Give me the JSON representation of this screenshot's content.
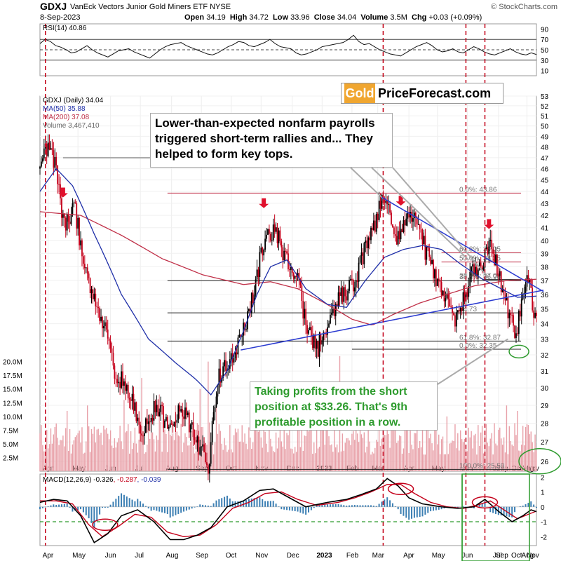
{
  "header": {
    "symbol": "GDXJ",
    "name": "VanEck Vectors Junior Gold Miners ETF  NYSE",
    "date": "8-Sep-2023",
    "open_label": "Open",
    "open": "34.19",
    "high_label": "High",
    "high": "34.72",
    "low_label": "Low",
    "low": "33.96",
    "close_label": "Close",
    "close": "34.04",
    "volume_label": "Volume",
    "volume": "3.5M",
    "chg_label": "Chg",
    "chg": "+0.03 (+0.09%)",
    "source": "© StockCharts.com"
  },
  "logo": {
    "gold": "Gold",
    "rest": "PriceForecast.com"
  },
  "notes": {
    "top": "Lower-than-expected nonfarm payrolls triggered short-term rallies and... They helped to form key tops.",
    "bottom": "Taking profits from the short position at $33.26. That's 9th profitable position in a row."
  },
  "colors": {
    "up": "#000000",
    "down": "#c4001a",
    "ma50": "#1f2fa8",
    "ma200": "#c03048",
    "green": "#2e9b2e",
    "trend": "#2a3ad0",
    "volume": "#e8a0a8"
  },
  "chart_data": [
    {
      "type": "line",
      "title": "RSI(14) 40.86",
      "series": [
        {
          "name": "RSI(14)",
          "last": 40.86,
          "values": [
            62,
            70,
            66,
            58,
            55,
            50,
            44,
            46,
            52,
            58,
            50,
            44,
            40,
            36,
            42,
            48,
            50,
            52,
            46,
            42,
            38,
            34,
            42,
            50,
            56,
            60,
            62,
            64,
            58,
            54,
            50,
            46,
            42,
            40,
            44,
            50,
            56,
            60,
            66,
            64,
            58,
            56,
            60,
            64,
            70,
            62,
            56,
            54,
            52,
            44,
            40,
            42,
            46,
            50,
            56,
            58,
            60,
            62,
            64,
            70,
            78,
            66,
            60,
            62,
            56,
            50,
            46,
            42,
            40,
            38,
            44,
            50,
            56,
            60,
            64,
            58,
            50,
            46,
            48,
            52,
            46,
            44,
            50,
            56,
            52,
            46,
            42,
            40,
            44,
            48,
            52,
            46,
            42,
            40,
            44,
            40.86
          ]
        }
      ],
      "ylim": [
        0,
        100
      ],
      "yticks": [
        90,
        70,
        50,
        30,
        10
      ],
      "guides": [
        70,
        50,
        30
      ]
    },
    {
      "type": "candlestick",
      "title": "GDXJ (Daily) 34.04",
      "legend": [
        {
          "label": "GDXJ (Daily) 34.04",
          "color": "#000000"
        },
        {
          "label": "MA(50) 35.88",
          "color": "#1f2fa8"
        },
        {
          "label": "MA(200) 37.08",
          "color": "#c03048"
        },
        {
          "label": "Volume 3,467,410",
          "color": "#888888"
        }
      ],
      "yscale": "log",
      "ylim": [
        25.5,
        53
      ],
      "yticks": [
        53,
        52,
        51,
        50,
        49,
        48,
        47,
        46,
        45,
        44,
        43,
        42,
        41,
        40,
        39,
        38,
        37,
        36,
        35,
        34,
        33,
        32,
        31,
        30,
        29,
        28,
        27,
        26
      ],
      "price_anchors": [
        [
          0,
          46
        ],
        [
          5,
          48
        ],
        [
          10,
          47
        ],
        [
          18,
          41
        ],
        [
          22,
          42
        ],
        [
          26,
          42.5
        ],
        [
          32,
          38
        ],
        [
          40,
          36
        ],
        [
          48,
          33.5
        ],
        [
          55,
          31
        ],
        [
          64,
          30
        ],
        [
          75,
          27.5
        ],
        [
          86,
          29
        ],
        [
          96,
          27.5
        ],
        [
          104,
          29
        ],
        [
          114,
          27.3
        ],
        [
          124,
          25.8
        ],
        [
          132,
          30.6
        ],
        [
          144,
          32
        ],
        [
          155,
          35
        ],
        [
          164,
          39.3
        ],
        [
          172,
          41
        ],
        [
          180,
          39
        ],
        [
          190,
          37
        ],
        [
          196,
          34
        ],
        [
          204,
          32.3
        ],
        [
          212,
          34
        ],
        [
          222,
          36
        ],
        [
          230,
          36.5
        ],
        [
          238,
          38.8
        ],
        [
          244,
          40.2
        ],
        [
          252,
          43.5
        ],
        [
          258,
          42.5
        ],
        [
          264,
          40
        ],
        [
          272,
          42.3
        ],
        [
          280,
          40.6
        ],
        [
          288,
          38
        ],
        [
          296,
          36
        ],
        [
          306,
          34.5
        ],
        [
          312,
          35.5
        ],
        [
          318,
          37.5
        ],
        [
          326,
          38.3
        ],
        [
          332,
          39.6
        ],
        [
          338,
          37.5
        ],
        [
          344,
          35.2
        ],
        [
          350,
          33.3
        ],
        [
          354,
          34.7
        ],
        [
          358,
          36.8
        ],
        [
          361,
          36.6
        ],
        [
          364,
          34.3
        ],
        [
          366,
          34.04
        ]
      ],
      "ma50": {
        "name": "MA(50)",
        "last": 35.88,
        "anchors": [
          [
            0,
            44
          ],
          [
            12,
            46
          ],
          [
            24,
            44.5
          ],
          [
            40,
            40.5
          ],
          [
            60,
            36
          ],
          [
            80,
            33
          ],
          [
            100,
            31.5
          ],
          [
            115,
            30.5
          ],
          [
            126,
            29.6
          ],
          [
            138,
            31
          ],
          [
            150,
            33.5
          ],
          [
            160,
            36
          ],
          [
            170,
            38
          ],
          [
            182,
            38.5
          ],
          [
            196,
            36.4
          ],
          [
            212,
            35.3
          ],
          [
            226,
            35.1
          ],
          [
            240,
            37
          ],
          [
            254,
            38.7
          ],
          [
            268,
            39.3
          ],
          [
            282,
            39.6
          ],
          [
            296,
            39.3
          ],
          [
            310,
            38.2
          ],
          [
            326,
            37.1
          ],
          [
            340,
            36.4
          ],
          [
            352,
            35.8
          ],
          [
            366,
            35.88
          ]
        ]
      },
      "ma200": {
        "name": "MA(200)",
        "last": 37.08,
        "anchors": [
          [
            0,
            42.3
          ],
          [
            30,
            42.0
          ],
          [
            60,
            40.4
          ],
          [
            90,
            38.6
          ],
          [
            120,
            37.4
          ],
          [
            150,
            36.7
          ],
          [
            170,
            36.9
          ],
          [
            190,
            36.4
          ],
          [
            210,
            35.4
          ],
          [
            230,
            34.3
          ],
          [
            245,
            33.9
          ],
          [
            260,
            34.6
          ],
          [
            280,
            35.4
          ],
          [
            300,
            36.0
          ],
          [
            320,
            36.6
          ],
          [
            345,
            37.0
          ],
          [
            366,
            37.08
          ]
        ]
      },
      "fib_levels": [
        {
          "label": "0.0%: 43.86",
          "price": 43.86,
          "x_from": 94
        },
        {
          "label": "61.8%: 39.05",
          "price": 39.05,
          "x_from": 296
        },
        {
          "label": "50.0%: 38.35",
          "price": 38.35,
          "x_from": 296
        },
        {
          "label": "38.2%: 36.98",
          "price": 36.98,
          "x_from": 94
        },
        {
          "label": "23.6%: 37.06",
          "price": 37.06,
          "x_from": 326
        },
        {
          "label": "34.73",
          "price": 34.73,
          "x_from": 94
        },
        {
          "label": "0.0%: 32.35",
          "price": 32.35,
          "x_from": 230
        },
        {
          "label": "61.8%: 32.87",
          "price": 32.87,
          "x_from": 94
        },
        {
          "label": "100.0%: 25.59",
          "price": 25.59,
          "x_from": 94
        }
      ],
      "resistance_line": [
        [
          252,
          43.5
        ],
        [
          366,
          36.2
        ]
      ],
      "support_line": [
        [
          148,
          32.3
        ],
        [
          366,
          36.3
        ]
      ],
      "top_arrows": [
        {
          "x": 17,
          "price": 43.5
        },
        {
          "x": 165,
          "price": 42.6
        },
        {
          "x": 266,
          "price": 42.8
        },
        {
          "x": 331,
          "price": 40.9
        }
      ],
      "nfp_date_lines": [
        4,
        253,
        314,
        328
      ],
      "volume": {
        "name": "Volume",
        "last": 3467410,
        "yticks": [
          "20.0M",
          "17.5M",
          "15.0M",
          "12.5M",
          "10.0M",
          "7.5M",
          "5.0M",
          "2.5M"
        ],
        "ylim_millions": [
          0,
          22
        ],
        "spikes": [
          [
            20,
            11
          ],
          [
            35,
            12
          ],
          [
            62,
            13
          ],
          [
            75,
            17
          ],
          [
            88,
            14
          ],
          [
            100,
            12
          ],
          [
            118,
            15
          ],
          [
            124,
            20
          ],
          [
            130,
            13
          ],
          [
            160,
            12
          ],
          [
            190,
            10
          ],
          [
            221,
            21
          ],
          [
            250,
            14
          ],
          [
            262,
            12
          ],
          [
            300,
            10
          ],
          [
            344,
            12
          ],
          [
            352,
            11
          ]
        ]
      }
    },
    {
      "type": "line",
      "title": "MACD(12,26,9) -0.326, -0.287, -0.039",
      "legend_parts": [
        "MACD(12,26,9) -0.326",
        ", -0.287",
        ", -0.039"
      ],
      "series": [
        {
          "name": "MACD",
          "last": -0.326,
          "anchors": [
            [
              0,
              0.3
            ],
            [
              10,
              0.5
            ],
            [
              20,
              0.4
            ],
            [
              30,
              -0.6
            ],
            [
              40,
              -2.4
            ],
            [
              50,
              -1.8
            ],
            [
              60,
              -0.6
            ],
            [
              72,
              -0.2
            ],
            [
              84,
              -1.0
            ],
            [
              96,
              -2.2
            ],
            [
              106,
              -2.2
            ],
            [
              116,
              -1.9
            ],
            [
              126,
              -1.4
            ],
            [
              138,
              0.0
            ],
            [
              150,
              0.4
            ],
            [
              162,
              1.1
            ],
            [
              172,
              1.2
            ],
            [
              184,
              0.6
            ],
            [
              196,
              0.0
            ],
            [
              212,
              0.3
            ],
            [
              226,
              0.5
            ],
            [
              236,
              0.8
            ],
            [
              248,
              1.2
            ],
            [
              256,
              1.9
            ],
            [
              264,
              1.4
            ],
            [
              272,
              0.6
            ],
            [
              282,
              0.2
            ],
            [
              296,
              0.0
            ],
            [
              308,
              -0.1
            ],
            [
              320,
              0.0
            ],
            [
              328,
              0.5
            ],
            [
              338,
              -0.3
            ],
            [
              348,
              -1.0
            ],
            [
              356,
              -0.6
            ],
            [
              362,
              -0.2
            ],
            [
              366,
              -0.326
            ]
          ]
        },
        {
          "name": "Signal",
          "last": -0.287,
          "anchors": [
            [
              0,
              0.4
            ],
            [
              12,
              0.4
            ],
            [
              24,
              0.2
            ],
            [
              36,
              -1.2
            ],
            [
              46,
              -2.0
            ],
            [
              58,
              -1.3
            ],
            [
              70,
              -0.5
            ],
            [
              82,
              -0.7
            ],
            [
              94,
              -1.7
            ],
            [
              106,
              -2.0
            ],
            [
              118,
              -1.9
            ],
            [
              130,
              -1.2
            ],
            [
              142,
              -0.1
            ],
            [
              154,
              0.3
            ],
            [
              166,
              0.9
            ],
            [
              178,
              1.0
            ],
            [
              190,
              0.5
            ],
            [
              204,
              0.1
            ],
            [
              220,
              0.3
            ],
            [
              232,
              0.6
            ],
            [
              244,
              1.0
            ],
            [
              256,
              1.5
            ],
            [
              266,
              1.5
            ],
            [
              276,
              0.9
            ],
            [
              288,
              0.3
            ],
            [
              300,
              0.0
            ],
            [
              312,
              -0.1
            ],
            [
              322,
              0.1
            ],
            [
              332,
              0.4
            ],
            [
              342,
              -0.2
            ],
            [
              352,
              -0.8
            ],
            [
              360,
              -0.5
            ],
            [
              366,
              -0.287
            ]
          ]
        }
      ],
      "histogram_last": -0.039,
      "ylim": [
        -2.6,
        2.2
      ],
      "yticks": [
        2,
        1,
        0,
        -1,
        -2
      ],
      "guide": -1
    }
  ],
  "x_axis": {
    "months_top": [
      "Apr",
      "May",
      "Jun",
      "Jul",
      "Aug",
      "Sep",
      "Oct",
      "Nov",
      "Dec",
      "2023",
      "Feb",
      "Mar",
      "Apr",
      "May",
      "Jun",
      "Jul",
      "Aug",
      "Sep",
      "Oct",
      "Nov"
    ],
    "months_bottom": [
      "Apr",
      "May",
      "Jun",
      "Jul",
      "Aug",
      "Sep",
      "Oct",
      "Nov",
      "Dec",
      "2023",
      "Feb",
      "Mar",
      "Apr",
      "May",
      "Jun",
      "Jul",
      "Aug",
      "Sep",
      "Oct",
      "Nov"
    ]
  }
}
